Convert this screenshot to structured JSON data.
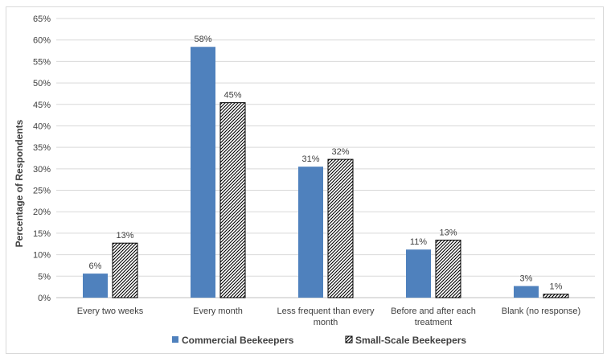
{
  "chart_data": {
    "type": "bar",
    "title": "",
    "xlabel": "",
    "ylabel": "Percentage of Respondents",
    "ylim": [
      0,
      65
    ],
    "ytick_step": 5,
    "ytick_suffix": "%",
    "grid": true,
    "legend_position": "bottom",
    "categories": [
      [
        "Every two weeks"
      ],
      [
        "Every month"
      ],
      [
        "Less frequent than every",
        "month"
      ],
      [
        "Before and after each",
        "treatment"
      ],
      [
        "Blank (no response)"
      ]
    ],
    "series": [
      {
        "name": "Commercial Beekeepers",
        "values": [
          5.6,
          58.4,
          30.5,
          11.2,
          2.7
        ],
        "labels": [
          "6%",
          "58%",
          "31%",
          "11%",
          "3%"
        ],
        "color": "#4f81bd",
        "fill": "solid"
      },
      {
        "name": "Small-Scale Beekeepers",
        "values": [
          12.7,
          45.4,
          32.2,
          13.4,
          0.8
        ],
        "labels": [
          "13%",
          "45%",
          "32%",
          "13%",
          "1%"
        ],
        "color": "#000000",
        "fill": "diagonal-hatch"
      }
    ]
  }
}
